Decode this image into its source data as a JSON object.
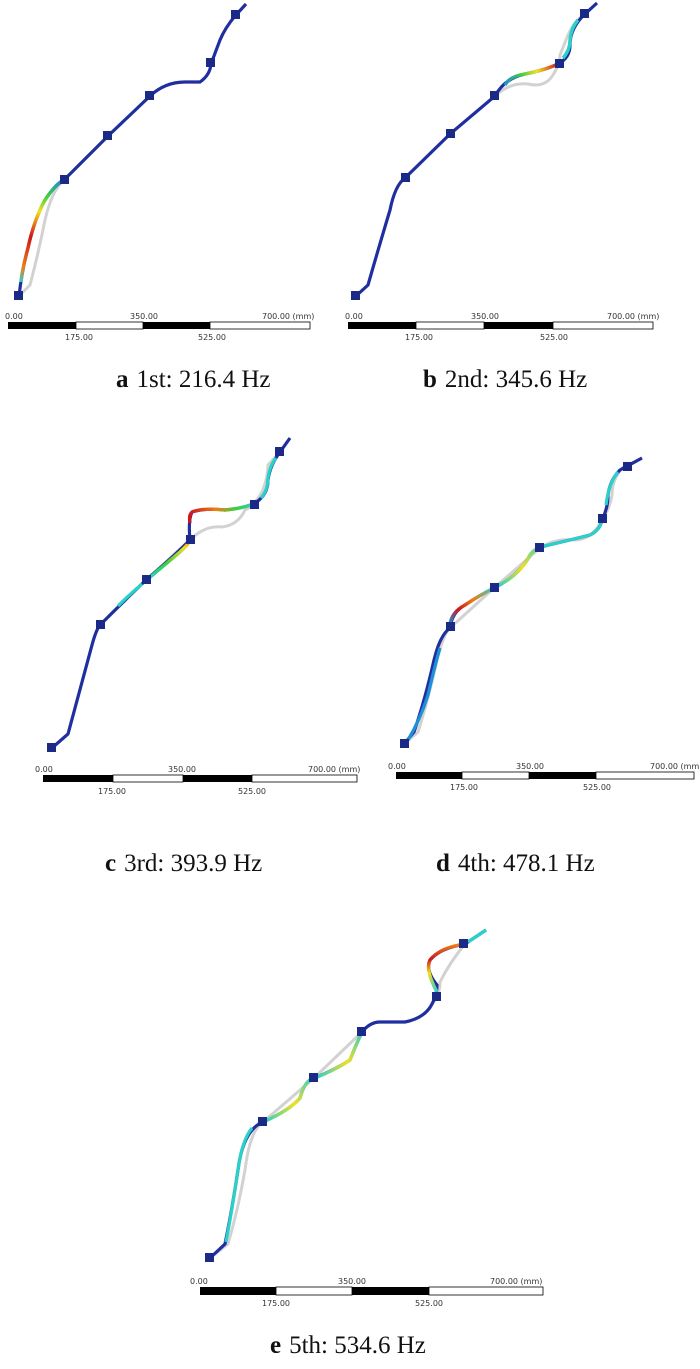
{
  "colors": {
    "pipe": "#1f2fa0",
    "undeformed": "#cfcfcf",
    "clamp": "#1a2a86",
    "scale_dark": "#000000",
    "scale_light": "#ffffff",
    "contour": [
      "#1f2fa0",
      "#1e90d8",
      "#2ad1c8",
      "#3ad13a",
      "#f2e21a",
      "#f07d12",
      "#d2141a"
    ]
  },
  "scale_bar": {
    "labels": [
      "0.00",
      "350.00",
      "700.00 (mm)"
    ],
    "sublabels": [
      "175.00",
      "525.00"
    ]
  },
  "panels": [
    {
      "letter": "a",
      "caption": "1st: 216.4 Hz"
    },
    {
      "letter": "b",
      "caption": "2nd: 345.6 Hz"
    },
    {
      "letter": "c",
      "caption": "3rd: 393.9 Hz"
    },
    {
      "letter": "d",
      "caption": "4th: 478.1 Hz"
    },
    {
      "letter": "e",
      "caption": "5th: 534.6 Hz"
    }
  ]
}
